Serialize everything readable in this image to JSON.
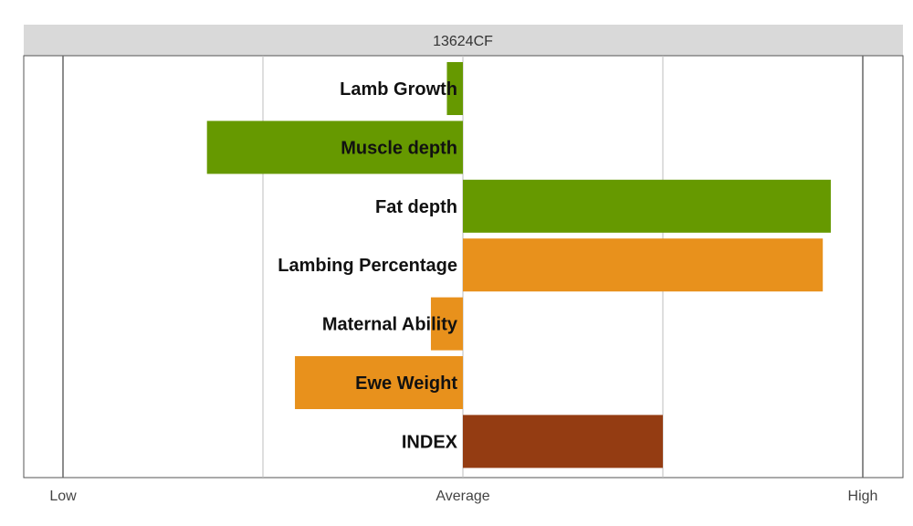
{
  "chart_data": {
    "type": "bar",
    "orientation": "horizontal",
    "title": "13624CF",
    "categories": [
      "Lamb Growth",
      "Muscle depth",
      "Fat depth",
      "Lambing Percentage",
      "Maternal Ability",
      "Ewe Weight",
      "INDEX"
    ],
    "values": [
      -0.08,
      -1.28,
      1.84,
      1.8,
      -0.16,
      -0.84,
      1.0
    ],
    "colors": [
      "#669900",
      "#669900",
      "#669900",
      "#E8911C",
      "#E8911C",
      "#E8911C",
      "#943C12"
    ],
    "xlim": [
      -2,
      2
    ],
    "x_tick_labels": [
      {
        "value": -2,
        "label": "Low"
      },
      {
        "value": 0,
        "label": "Average"
      },
      {
        "value": 2,
        "label": "High"
      }
    ],
    "gridlines_at": [
      -2,
      -1,
      0,
      1,
      2
    ],
    "grid": true,
    "legend": "none"
  }
}
